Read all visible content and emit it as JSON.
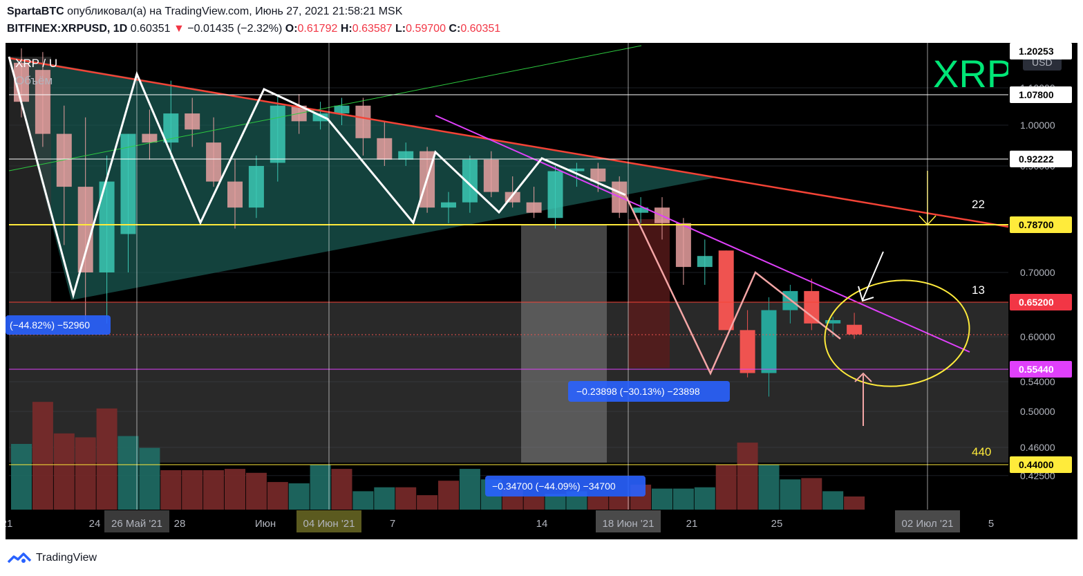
{
  "header": {
    "author": "SpartaBTC",
    "published_text": "опубликовал(а) на TradingView.com, Июнь 27, 2021 21:58:21 MSK",
    "symbol": "BITFINEX:XRPUSD, 1D",
    "last": "0.60351",
    "change": "−0.01435 (−2.32%)",
    "o_label": "O:",
    "o": "0.61792",
    "h_label": "H:",
    "h": "0.63587",
    "l_label": "L:",
    "l": "0.59700",
    "c_label": "C:",
    "c": "0.60351"
  },
  "legend": {
    "symbol": "XRP / U",
    "volume": "Объём"
  },
  "watermark": "XRP",
  "currency": "USD",
  "footer": {
    "brand": "TradingView"
  },
  "colors": {
    "up": "#26a69a",
    "down": "#ef5350",
    "bg": "#000000",
    "yellow": "#ffeb3b",
    "magenta": "#e040fb"
  },
  "chart_data": {
    "type": "candlestick",
    "title": "BITFINEX:XRPUSD, 1D",
    "ylim": [
      0.4,
      1.21
    ],
    "y_ticks": [
      "0.42500",
      "0.46000",
      "0.50000",
      "0.54000",
      "0.60000",
      "0.70000",
      "0.90000",
      "1.00000",
      "1.10000"
    ],
    "x_ticks": [
      "21",
      "24",
      "26 Май '21",
      "28",
      "Июн",
      "04 Июн '21",
      "7",
      "14",
      "18 Июн '21",
      "21",
      "25",
      "02 Июл '21",
      "5"
    ],
    "highlighted_x_ticks": [
      "26 Май '21",
      "04 Июн '21",
      "18 Июн '21",
      "02 Июл '21"
    ],
    "price_labels": [
      "1.20253",
      "1.07800",
      "0.92222",
      "0.78700",
      "0.65200",
      "0.55440",
      "0.44000"
    ],
    "level_labels": [
      "22",
      "13",
      "440"
    ],
    "measurements": [
      "(−44.82%) −52960",
      "−0.23898 (−30.13%) −23898",
      "−0.34700 (−44.09%) −34700"
    ],
    "candles": [
      {
        "o": 1.17,
        "h": 1.21,
        "l": 1.02,
        "c": 1.06
      },
      {
        "o": 1.15,
        "h": 1.2,
        "l": 0.95,
        "c": 0.98
      },
      {
        "o": 0.98,
        "h": 1.05,
        "l": 0.75,
        "c": 0.86
      },
      {
        "o": 0.86,
        "h": 1.02,
        "l": 0.62,
        "c": 0.7
      },
      {
        "o": 0.7,
        "h": 0.93,
        "l": 0.62,
        "c": 0.87
      },
      {
        "o": 0.77,
        "h": 0.98,
        "l": 0.7,
        "c": 0.98
      },
      {
        "o": 0.98,
        "h": 1.04,
        "l": 0.92,
        "c": 0.96
      },
      {
        "o": 0.96,
        "h": 1.12,
        "l": 0.92,
        "c": 1.03
      },
      {
        "o": 1.03,
        "h": 1.07,
        "l": 0.95,
        "c": 0.99
      },
      {
        "o": 0.96,
        "h": 1.02,
        "l": 0.86,
        "c": 0.87
      },
      {
        "o": 0.87,
        "h": 0.92,
        "l": 0.78,
        "c": 0.82
      },
      {
        "o": 0.82,
        "h": 0.93,
        "l": 0.8,
        "c": 0.9
      },
      {
        "o": 0.91,
        "h": 1.08,
        "l": 0.87,
        "c": 1.05
      },
      {
        "o": 1.05,
        "h": 1.08,
        "l": 0.98,
        "c": 1.01
      },
      {
        "o": 1.01,
        "h": 1.06,
        "l": 0.99,
        "c": 1.03
      },
      {
        "o": 1.03,
        "h": 1.07,
        "l": 1.0,
        "c": 1.05
      },
      {
        "o": 1.05,
        "h": 1.07,
        "l": 0.93,
        "c": 0.97
      },
      {
        "o": 0.97,
        "h": 1.01,
        "l": 0.9,
        "c": 0.92
      },
      {
        "o": 0.92,
        "h": 0.96,
        "l": 0.9,
        "c": 0.94
      },
      {
        "o": 0.94,
        "h": 0.95,
        "l": 0.81,
        "c": 0.82
      },
      {
        "o": 0.82,
        "h": 0.85,
        "l": 0.79,
        "c": 0.83
      },
      {
        "o": 0.83,
        "h": 0.93,
        "l": 0.81,
        "c": 0.92
      },
      {
        "o": 0.92,
        "h": 0.94,
        "l": 0.84,
        "c": 0.85
      },
      {
        "o": 0.85,
        "h": 0.88,
        "l": 0.82,
        "c": 0.83
      },
      {
        "o": 0.83,
        "h": 0.86,
        "l": 0.8,
        "c": 0.81
      },
      {
        "o": 0.8,
        "h": 0.9,
        "l": 0.78,
        "c": 0.89
      },
      {
        "o": 0.89,
        "h": 0.91,
        "l": 0.86,
        "c": 0.895
      },
      {
        "o": 0.895,
        "h": 0.91,
        "l": 0.85,
        "c": 0.87
      },
      {
        "o": 0.87,
        "h": 0.88,
        "l": 0.8,
        "c": 0.81
      },
      {
        "o": 0.81,
        "h": 0.84,
        "l": 0.79,
        "c": 0.82
      },
      {
        "o": 0.82,
        "h": 0.84,
        "l": 0.76,
        "c": 0.79
      },
      {
        "o": 0.79,
        "h": 0.8,
        "l": 0.68,
        "c": 0.71
      },
      {
        "o": 0.71,
        "h": 0.76,
        "l": 0.68,
        "c": 0.73
      },
      {
        "o": 0.74,
        "h": 0.74,
        "l": 0.61,
        "c": 0.61
      },
      {
        "o": 0.61,
        "h": 0.64,
        "l": 0.545,
        "c": 0.55
      },
      {
        "o": 0.55,
        "h": 0.66,
        "l": 0.52,
        "c": 0.64
      },
      {
        "o": 0.64,
        "h": 0.68,
        "l": 0.62,
        "c": 0.67
      },
      {
        "o": 0.67,
        "h": 0.69,
        "l": 0.61,
        "c": 0.62
      },
      {
        "o": 0.62,
        "h": 0.63,
        "l": 0.6,
        "c": 0.625
      },
      {
        "o": 0.618,
        "h": 0.636,
        "l": 0.597,
        "c": 0.6035
      }
    ],
    "volume": [
      {
        "v": 0.5,
        "up": true
      },
      {
        "v": 0.82,
        "up": false
      },
      {
        "v": 0.58,
        "up": false
      },
      {
        "v": 0.55,
        "up": false
      },
      {
        "v": 0.77,
        "up": false
      },
      {
        "v": 0.56,
        "up": true
      },
      {
        "v": 0.47,
        "up": true
      },
      {
        "v": 0.3,
        "up": false
      },
      {
        "v": 0.3,
        "up": false
      },
      {
        "v": 0.3,
        "up": false
      },
      {
        "v": 0.31,
        "up": false
      },
      {
        "v": 0.28,
        "up": false
      },
      {
        "v": 0.21,
        "up": false
      },
      {
        "v": 0.2,
        "up": true
      },
      {
        "v": 0.34,
        "up": true
      },
      {
        "v": 0.31,
        "up": false
      },
      {
        "v": 0.14,
        "up": true
      },
      {
        "v": 0.17,
        "up": true
      },
      {
        "v": 0.17,
        "up": false
      },
      {
        "v": 0.11,
        "up": false
      },
      {
        "v": 0.22,
        "up": false
      },
      {
        "v": 0.31,
        "up": true
      },
      {
        "v": 0.23,
        "up": true
      },
      {
        "v": 0.16,
        "up": false
      },
      {
        "v": 0.1,
        "up": false
      },
      {
        "v": 0.12,
        "up": true
      },
      {
        "v": 0.14,
        "up": true
      },
      {
        "v": 0.1,
        "up": false
      },
      {
        "v": 0.1,
        "up": false
      },
      {
        "v": 0.19,
        "up": false
      },
      {
        "v": 0.16,
        "up": true
      },
      {
        "v": 0.16,
        "up": true
      },
      {
        "v": 0.17,
        "up": true
      },
      {
        "v": 0.34,
        "up": false
      },
      {
        "v": 0.51,
        "up": false
      },
      {
        "v": 0.34,
        "up": true
      },
      {
        "v": 0.23,
        "up": true
      },
      {
        "v": 0.24,
        "up": false
      },
      {
        "v": 0.14,
        "up": true
      },
      {
        "v": 0.1,
        "up": false
      }
    ]
  }
}
